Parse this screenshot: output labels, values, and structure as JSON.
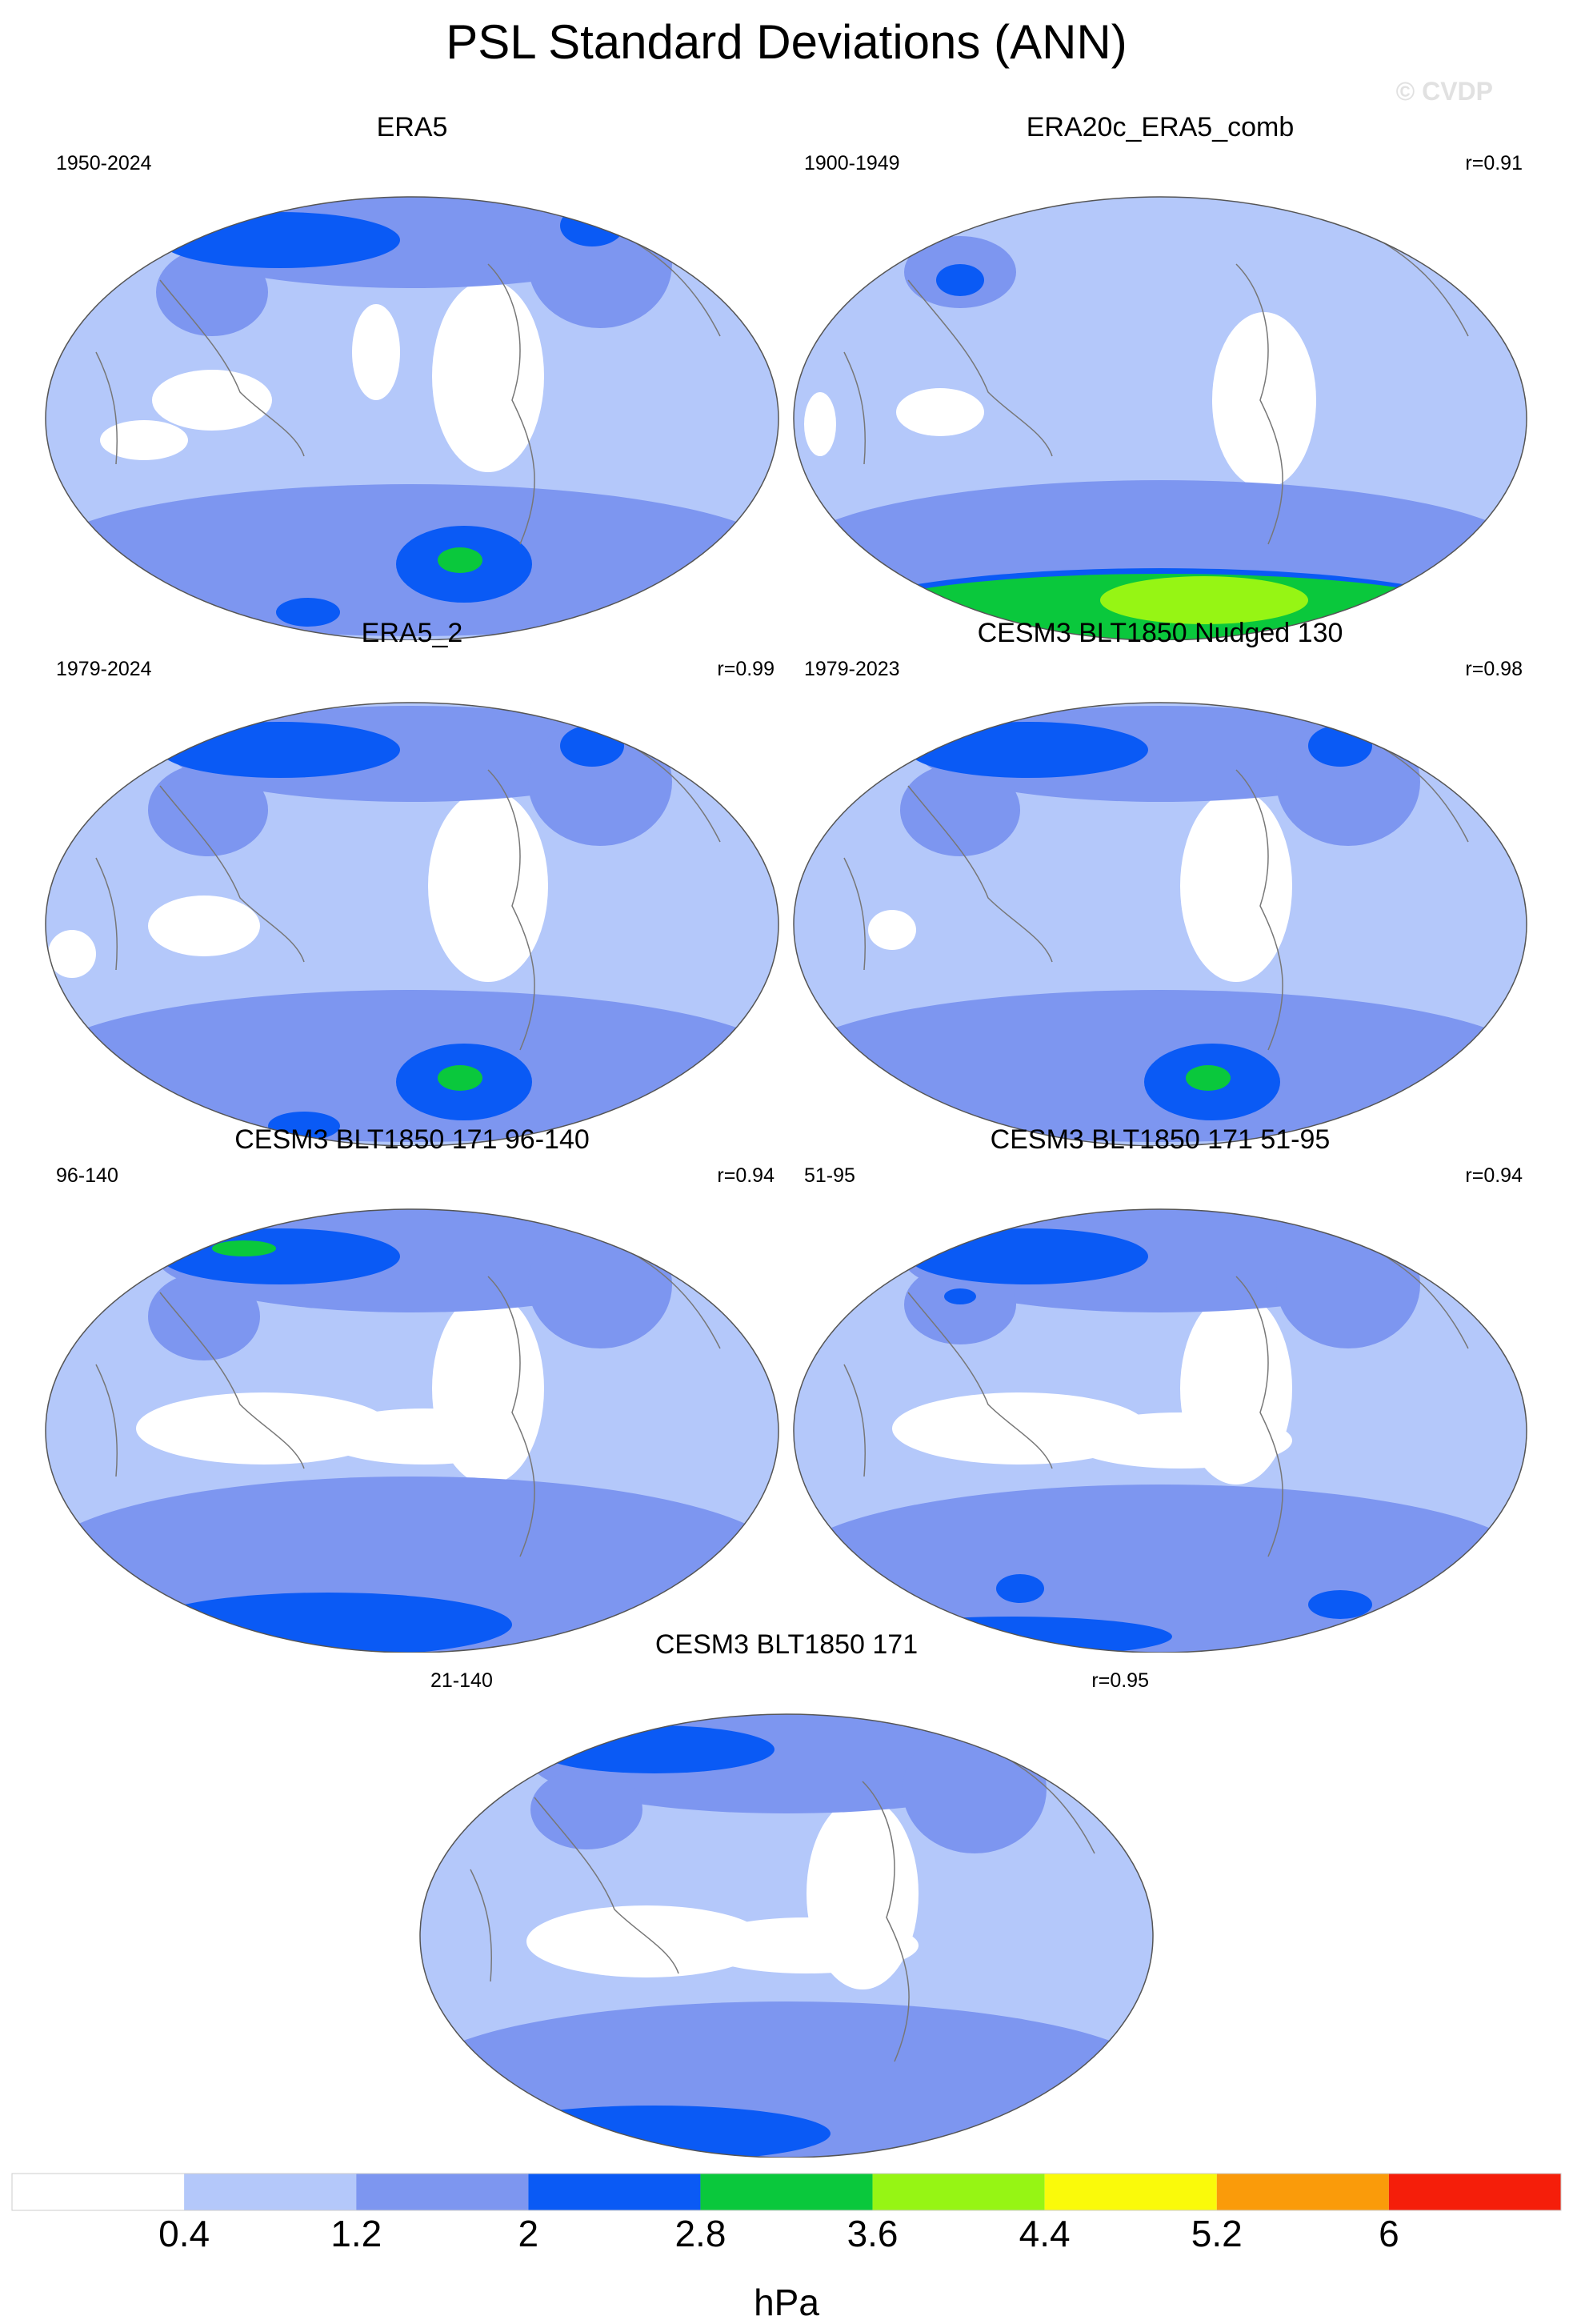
{
  "title": "PSL Standard Deviations (ANN)",
  "watermark": "© CVDP",
  "panels": [
    {
      "title": "ERA5",
      "period": "1950-2024",
      "corr": ""
    },
    {
      "title": "ERA20c_ERA5_comb",
      "period": "1900-1949",
      "corr": "r=0.91"
    },
    {
      "title": "ERA5_2",
      "period": "1979-2024",
      "corr": "r=0.99"
    },
    {
      "title": "CESM3 BLT1850 Nudged 130",
      "period": "1979-2023",
      "corr": "r=0.98"
    },
    {
      "title": "CESM3 BLT1850 171 96-140",
      "period": "96-140",
      "corr": "r=0.94"
    },
    {
      "title": "CESM3 BLT1850 171 51-95",
      "period": "51-95",
      "corr": "r=0.94"
    },
    {
      "title": "CESM3 BLT1850 171",
      "period": "21-140",
      "corr": "r=0.95"
    }
  ],
  "colorbar": {
    "unit": "hPa",
    "ticks": [
      "0.4",
      "1.2",
      "2",
      "2.8",
      "3.6",
      "4.4",
      "5.2",
      "6"
    ],
    "colors": [
      "#ffffff",
      "#b4c8fa",
      "#7d96f0",
      "#0a5af5",
      "#0ac83c",
      "#96f514",
      "#fafa0a",
      "#fa9b0a",
      "#f51e0a"
    ]
  }
}
